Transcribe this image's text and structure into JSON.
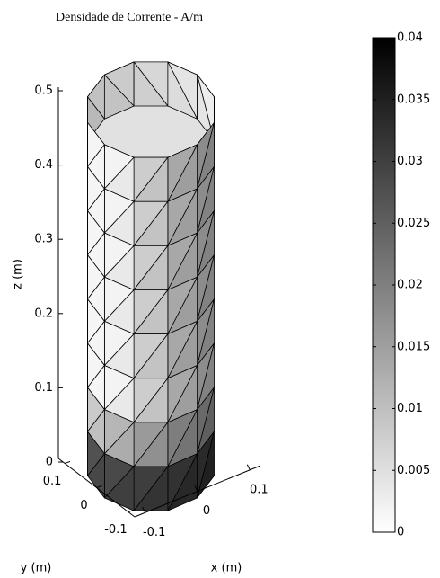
{
  "chart_data": {
    "type": "surface",
    "title": "Densidade de Corrente - A/m",
    "xlabel": "x (m)",
    "ylabel": "y (m)",
    "zlabel": "z (m)",
    "xlim": [
      -0.12,
      0.12
    ],
    "xticks": [
      -0.1,
      0,
      0.1
    ],
    "ylim": [
      -0.12,
      0.12
    ],
    "yticks": [
      -0.1,
      0,
      0.1
    ],
    "zlim": [
      0,
      0.5
    ],
    "zticks": [
      0,
      0.1,
      0.2,
      0.3,
      0.4,
      0.5
    ],
    "colorbar": {
      "clim": [
        0,
        0.04
      ],
      "ticks": [
        0,
        0.005,
        0.01,
        0.015,
        0.02,
        0.025,
        0.03,
        0.035,
        0.04
      ],
      "colors": [
        "#ffffff",
        "#000000"
      ]
    }
  }
}
